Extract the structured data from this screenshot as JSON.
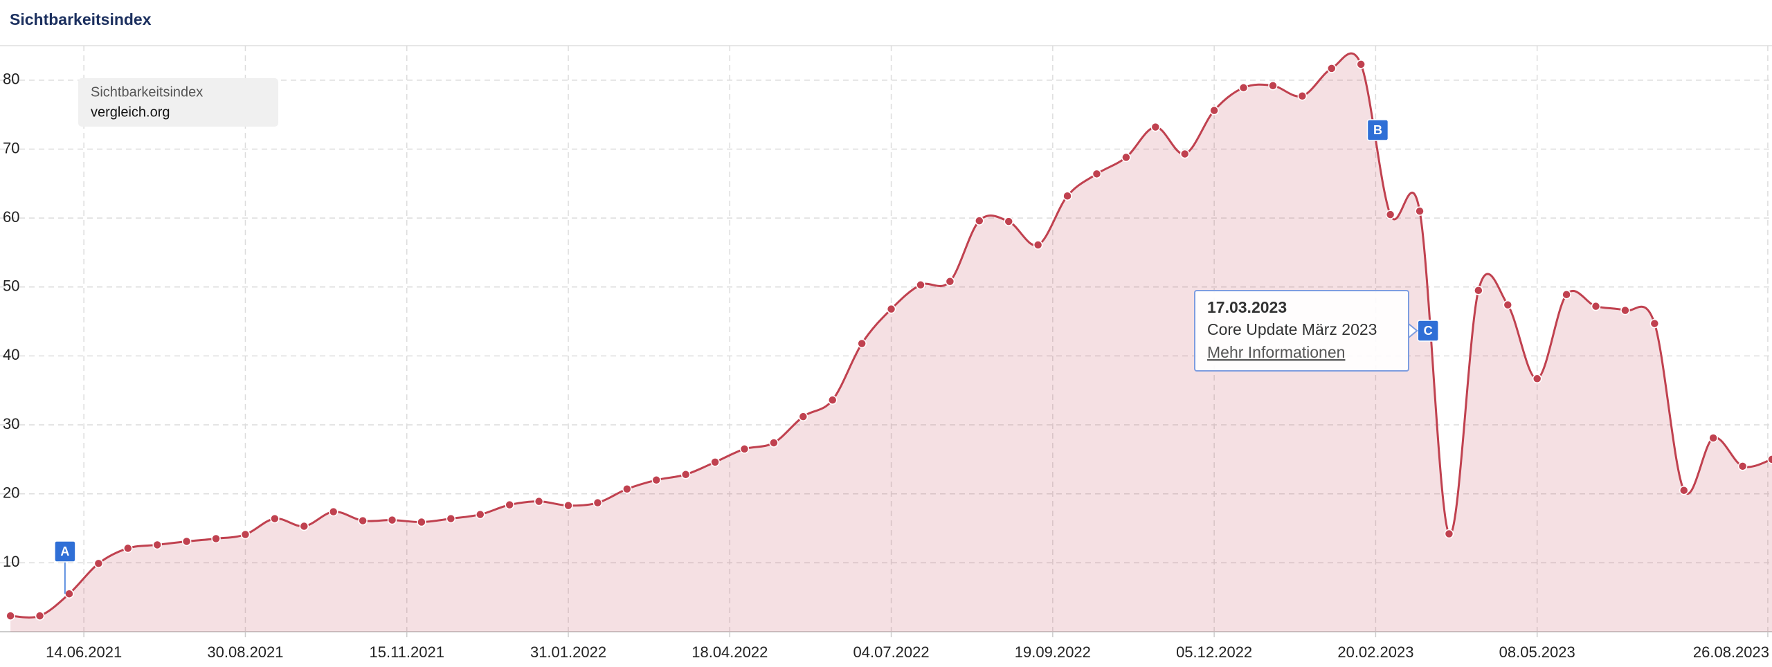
{
  "chart_data": {
    "type": "area",
    "title": "Sichtbarkeitsindex",
    "legend_title": "Sichtbarkeitsindex",
    "x": [
      "2021-05-10",
      "2021-05-24",
      "2021-06-07",
      "2021-06-21",
      "2021-07-05",
      "2021-07-19",
      "2021-08-02",
      "2021-08-16",
      "2021-08-30",
      "2021-09-13",
      "2021-09-27",
      "2021-10-11",
      "2021-10-25",
      "2021-11-08",
      "2021-11-22",
      "2021-12-06",
      "2021-12-20",
      "2022-01-03",
      "2022-01-17",
      "2022-01-31",
      "2022-02-14",
      "2022-02-28",
      "2022-03-14",
      "2022-03-28",
      "2022-04-11",
      "2022-04-25",
      "2022-05-09",
      "2022-05-23",
      "2022-06-06",
      "2022-06-20",
      "2022-07-04",
      "2022-07-18",
      "2022-08-01",
      "2022-08-15",
      "2022-08-29",
      "2022-09-12",
      "2022-09-26",
      "2022-10-10",
      "2022-10-24",
      "2022-11-07",
      "2022-11-21",
      "2022-12-05",
      "2022-12-19",
      "2023-01-02",
      "2023-01-16",
      "2023-01-30",
      "2023-02-13",
      "2023-02-27",
      "2023-03-13",
      "2023-03-27",
      "2023-04-10",
      "2023-04-24",
      "2023-05-08",
      "2023-05-22",
      "2023-06-05",
      "2023-06-19",
      "2023-07-03",
      "2023-07-17",
      "2023-07-31",
      "2023-08-14",
      "2023-08-28"
    ],
    "series": [
      {
        "name": "vergleich.org",
        "color": "#c0414f",
        "values": [
          2.3,
          2.3,
          5.5,
          9.9,
          12.1,
          12.6,
          13.1,
          13.5,
          14.1,
          16.4,
          15.3,
          17.4,
          16.1,
          16.2,
          15.9,
          16.4,
          17.0,
          18.4,
          18.9,
          18.3,
          18.7,
          20.7,
          22.0,
          22.8,
          24.6,
          26.5,
          27.4,
          31.2,
          33.6,
          41.8,
          46.8,
          50.3,
          50.8,
          59.6,
          59.5,
          56.1,
          63.2,
          66.4,
          68.8,
          73.2,
          69.3,
          75.6,
          78.9,
          79.2,
          77.7,
          81.7,
          82.3,
          60.5,
          61.0,
          14.2,
          49.5,
          47.4,
          36.7,
          48.9,
          47.2,
          46.6,
          44.7,
          20.5,
          28.1,
          24.0,
          25.0
        ]
      }
    ],
    "xlim": [
      "2021-05-05",
      "2023-08-28"
    ],
    "xticks": [
      {
        "value": "2021-06-14",
        "label": "14.06.2021"
      },
      {
        "value": "2021-08-30",
        "label": "30.08.2021"
      },
      {
        "value": "2021-11-15",
        "label": "15.11.2021"
      },
      {
        "value": "2022-01-31",
        "label": "31.01.2022"
      },
      {
        "value": "2022-04-18",
        "label": "18.04.2022"
      },
      {
        "value": "2022-07-04",
        "label": "04.07.2022"
      },
      {
        "value": "2022-09-19",
        "label": "19.09.2022"
      },
      {
        "value": "2022-12-05",
        "label": "05.12.2022"
      },
      {
        "value": "2023-02-20",
        "label": "20.02.2023"
      },
      {
        "value": "2023-05-08",
        "label": "08.05.2023"
      },
      {
        "value": "2023-08-26",
        "label": "26.08.2023"
      }
    ],
    "ylim": [
      0,
      85
    ],
    "yticks": [
      10,
      20,
      30,
      40,
      50,
      60,
      70,
      80
    ],
    "grid": true,
    "events": [
      {
        "label": "A",
        "x": "2021-06-05"
      },
      {
        "label": "B",
        "x": "2023-02-21"
      },
      {
        "label": "C",
        "x": "2023-03-17"
      }
    ],
    "tooltip": {
      "date": "17.03.2023",
      "title": "Core Update März 2023",
      "link": "Mehr Informationen"
    }
  }
}
